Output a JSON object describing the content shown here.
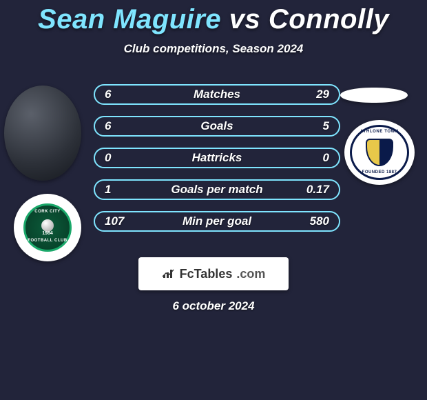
{
  "title": {
    "player1": "Sean Maguire",
    "vs": "vs",
    "player2": "Connolly",
    "player1_color": "#7fe5ff",
    "vs_color": "#ffffff",
    "player2_color": "#ffffff",
    "fontsize": 40
  },
  "subtitle": "Club competitions, Season 2024",
  "background_color": "#22243a",
  "accent_color": "#7fe5ff",
  "text_color": "#ffffff",
  "stats": {
    "row_border_color": "#7fe5ff",
    "label_fontsize": 17,
    "value_fontsize": 17,
    "rows": [
      {
        "left": "6",
        "label": "Matches",
        "right": "29"
      },
      {
        "left": "6",
        "label": "Goals",
        "right": "5"
      },
      {
        "left": "0",
        "label": "Hattricks",
        "right": "0"
      },
      {
        "left": "1",
        "label": "Goals per match",
        "right": "0.17"
      },
      {
        "left": "107",
        "label": "Min per goal",
        "right": "580"
      }
    ]
  },
  "crests": {
    "left": {
      "outer_bg": "#ffffff",
      "inner_bg": "#0b5b3a",
      "ring_color": "#1aa86a",
      "text_top": "CORK CITY",
      "text_bottom": "FOOTBALL CLUB",
      "year": "1984"
    },
    "right": {
      "bg": "#ffffff",
      "ring_color": "#0a1a4a",
      "text_top": "ATHLONE TOWN",
      "text_bottom": "FOUNDED 1887",
      "shield_left": "#e8c84a",
      "shield_right": "#0a1a4a"
    }
  },
  "branding": {
    "bg": "#ffffff",
    "icon_color": "#333333",
    "part1": "FcTables",
    "part2": ".com"
  },
  "date": "6 october 2024"
}
